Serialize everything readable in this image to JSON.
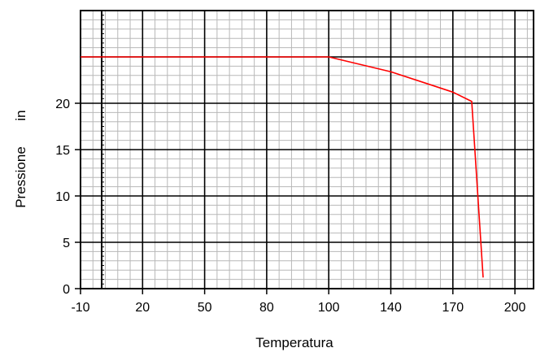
{
  "chart_data": {
    "type": "line",
    "title": "",
    "xlabel": "Temperatura",
    "ylabel": "Pressione",
    "ylabel_unit": "in",
    "x_ticks": [
      "-10",
      "20",
      "50",
      "80",
      "100",
      "140",
      "170",
      "200"
    ],
    "y_ticks": [
      "0",
      "5",
      "10",
      "15",
      "20"
    ],
    "ylim": [
      0,
      30
    ],
    "grid": true,
    "series": [
      {
        "color": "#ff0000",
        "points": [
          {
            "x": "-10",
            "y": 25
          },
          {
            "x": "100",
            "y": 25
          },
          {
            "x": "140",
            "y": 23.4
          },
          {
            "x": "170",
            "y": 21.2
          },
          {
            "x": "190",
            "y": 20.2
          },
          {
            "x": "200",
            "y": 1.2
          }
        ]
      }
    ]
  }
}
